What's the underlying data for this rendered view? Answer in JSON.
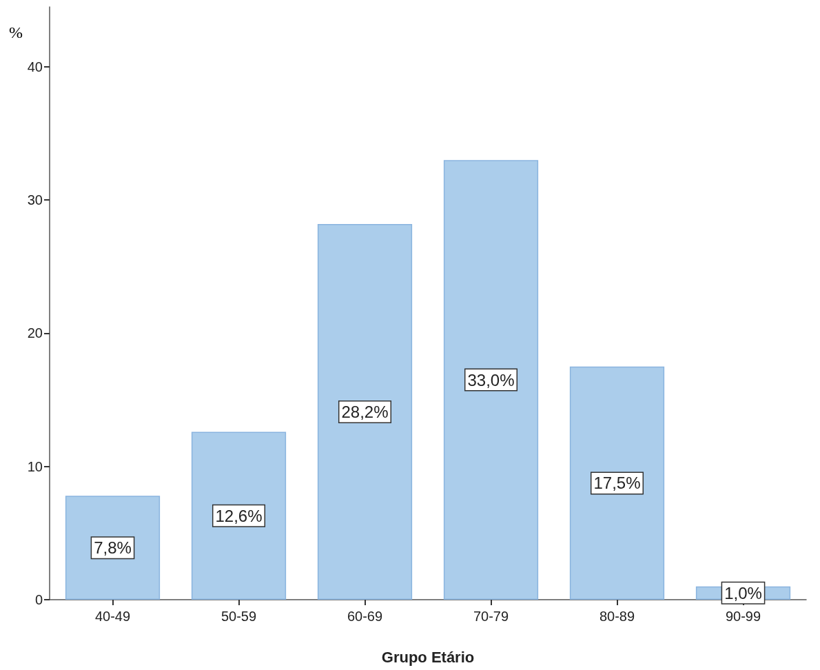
{
  "chart_data": {
    "type": "bar",
    "xlabel": "Grupo Etário",
    "ylabel": "%",
    "categories": [
      "40-49",
      "50-59",
      "60-69",
      "70-79",
      "80-89",
      "90-99"
    ],
    "values": [
      7.8,
      12.6,
      28.2,
      33.0,
      17.5,
      1.0
    ],
    "value_labels": [
      "7,8%",
      "12,6%",
      "28,2%",
      "33,0%",
      "17,5%",
      "1,0%"
    ],
    "color": "#abcdeb",
    "ylim": [
      0,
      44.5
    ],
    "yticks": [
      0,
      10,
      20,
      30,
      40
    ],
    "grid": false
  }
}
